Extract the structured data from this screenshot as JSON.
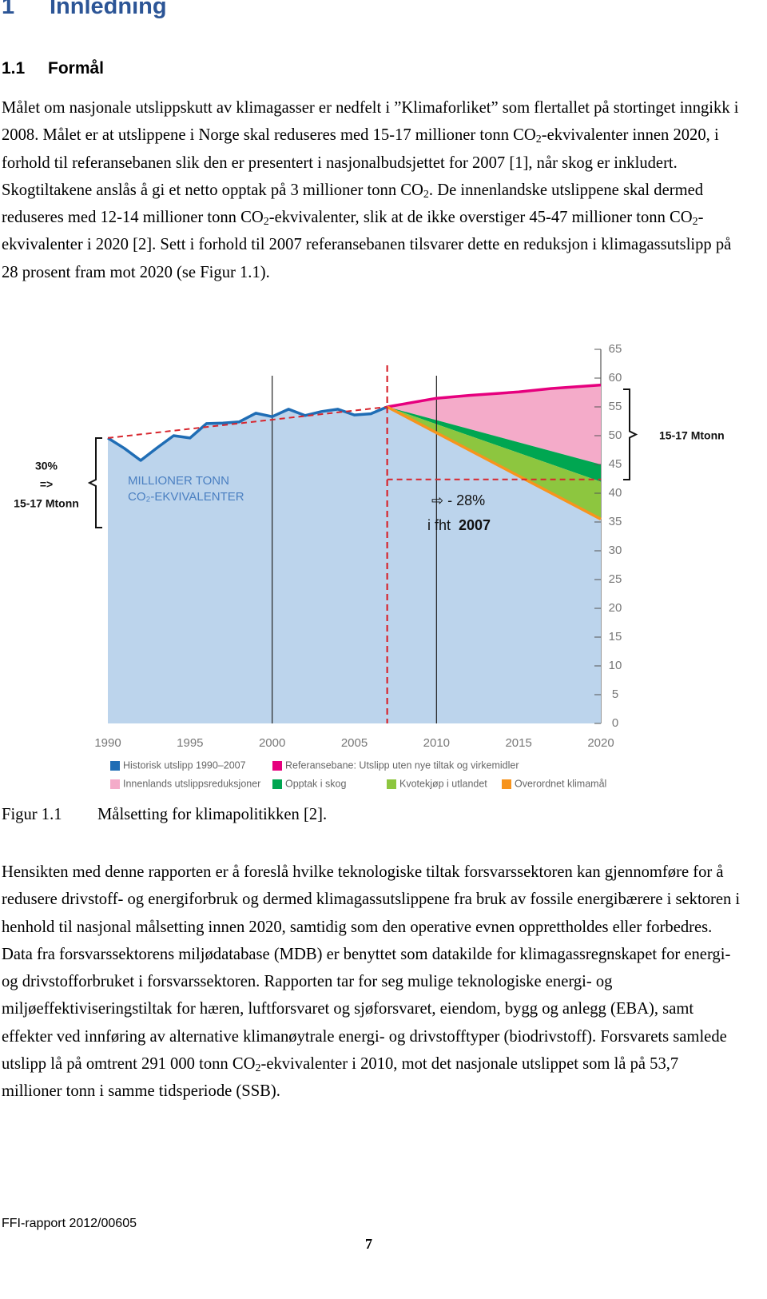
{
  "heading": {
    "number": "1",
    "title": "Innledning"
  },
  "subheading": {
    "number": "1.1",
    "title": "Formål"
  },
  "paragraph1": [
    "Målet om nasjonale utslippskutt av klimagasser er nedfelt i ”Klimaforliket” som flertallet på stortinget inngikk i 2008. Målet er at utslippene i Norge skal reduseres med 15-17 millioner tonn CO",
    "2",
    "-ekvivalenter innen 2020, i forhold til referansebanen slik den er presentert i nasjonalbudsjettet for 2007 [1], når skog er inkludert. Skogtiltakene anslås å gi et netto opptak på 3 millioner tonn CO",
    "2",
    ". De innenlandske utslippene skal dermed reduseres med 12-14 millioner tonn CO",
    "2",
    "-ekvivalenter, slik at de ikke overstiger 45-47 millioner tonn CO",
    "2",
    "-ekvivalenter i 2020 [2]. Sett i forhold til 2007 referansebanen tilsvarer dette en reduksjon i klimagassutslipp på 28 prosent fram mot 2020 (se Figur 1.1)."
  ],
  "chart_data": {
    "type": "area",
    "xlim": [
      1990,
      2020
    ],
    "xticks": [
      1990,
      1995,
      2000,
      2005,
      2010,
      2015,
      2020
    ],
    "ylim": [
      0,
      65
    ],
    "yticks": [
      0,
      5,
      10,
      15,
      20,
      25,
      30,
      35,
      40,
      45,
      50,
      55,
      60,
      65
    ],
    "vlines": [
      2000,
      2010
    ],
    "marker_x": 2007,
    "trend_line": {
      "color": "#d7262e",
      "x": [
        1990,
        2007
      ],
      "values": [
        49.6,
        55
      ]
    },
    "target_line": {
      "color": "#d7262e",
      "x": [
        2007,
        2020
      ],
      "values": [
        42.4,
        42.4
      ]
    },
    "legend": "bottom",
    "series": [
      {
        "name": "Historisk utslipp 1990–2007",
        "kind": "line",
        "color": "#1f6db5",
        "fill": "#bcd4ec",
        "x": [
          1990,
          1991,
          1992,
          1993,
          1994,
          1995,
          1996,
          1997,
          1998,
          1999,
          2000,
          2001,
          2002,
          2003,
          2004,
          2005,
          2006,
          2007
        ],
        "values": [
          49.6,
          47.8,
          45.7,
          47.9,
          50,
          49.6,
          52.1,
          52.2,
          52.4,
          53.9,
          53.3,
          54.6,
          53.5,
          54.2,
          54.6,
          53.6,
          53.8,
          55
        ]
      },
      {
        "name": "Referansebane: Utslipp uten nye tiltak og virkemidler",
        "kind": "line",
        "color": "#e6007e",
        "x": [
          2007,
          2010,
          2012,
          2015,
          2017,
          2020
        ],
        "values": [
          55,
          56.5,
          57,
          57.6,
          58.2,
          58.8
        ]
      },
      {
        "name": "Innenlands utslippsreduksjoner",
        "kind": "band",
        "color": "#f4abc9",
        "x": [
          2007,
          2020
        ],
        "values": [
          55,
          45
        ]
      },
      {
        "name": "Opptak i skog",
        "kind": "band",
        "color": "#00a651",
        "x": [
          2007,
          2020
        ],
        "values": [
          55,
          42
        ]
      },
      {
        "name": "Kvotekjøp i utlandet",
        "kind": "band",
        "color": "#8dc63f",
        "x": [
          2007,
          2020
        ],
        "values": [
          55,
          35.5
        ]
      },
      {
        "name": "Overordnet klimamål",
        "kind": "line",
        "color": "#f7941d",
        "x": [
          2007,
          2020
        ],
        "values": [
          55,
          35.5
        ]
      }
    ],
    "annotations": [
      "15-17 Mtonn",
      "30%",
      "=>",
      "15-17 Mtonn",
      "MILLIONER TONN",
      "CO₂-EKVIVALENTER",
      "⇨ - 28%",
      "i fht",
      "2007"
    ]
  },
  "caption": {
    "label": "Figur 1.1",
    "text": "Målsetting for klimapolitikken [2]."
  },
  "paragraph2": [
    "Hensikten med denne rapporten er å foreslå hvilke teknologiske tiltak forsvarssektoren kan gjennomføre for å redusere drivstoff- og energiforbruk og dermed klimagassutslippene fra bruk av fossile energibærere i sektoren i henhold til nasjonal målsetting innen 2020, samtidig som den operative evnen opprettholdes eller forbedres. Data fra forsvarssektorens miljødatabase (MDB) er benyttet som datakilde for klimagassregnskapet for energi- og drivstofforbruket i forsvarssektoren. Rapporten tar for seg mulige teknologiske energi- og miljøeffektiviseringstiltak for hæren, luftforsvaret og sjøforsvaret, eiendom, bygg og anlegg (EBA), samt effekter ved innføring av alternative klimanøytrale energi- og drivstofftyper (biodrivstoff). Forsvarets samlede utslipp lå på omtrent 291 000 tonn CO",
    "2",
    "-ekvivalenter i 2010, mot det nasjonale utslippet som lå på 53,7 millioner tonn i samme tidsperiode (SSB)."
  ],
  "footer": {
    "report": "FFI-rapport 2012/00605",
    "page": "7"
  }
}
